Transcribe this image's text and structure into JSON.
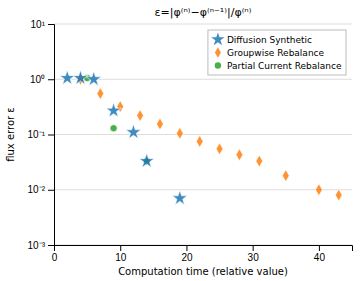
{
  "chart_data": {
    "type": "scatter",
    "title": "ε=|φ⁽ⁿ⁾−φ⁽ⁿ⁻¹⁾|/φ⁽ⁿ⁾",
    "x_label": "Computation time (relative value)",
    "y_label": "flux error ε",
    "log": "y",
    "xlim": [
      0,
      45
    ],
    "ylim": [
      0.001,
      10
    ],
    "xticks": [
      0,
      10,
      20,
      30,
      40
    ],
    "yticks": [
      {
        "value": 0.001,
        "label": "10⁻³"
      },
      {
        "value": 0.01,
        "label": "10⁻²"
      },
      {
        "value": 0.1,
        "label": "10⁻¹"
      },
      {
        "value": 1,
        "label": "10⁰"
      },
      {
        "value": 10,
        "label": "10¹"
      }
    ],
    "grid": true,
    "legend": "upper right",
    "series": [
      {
        "name": "Diffusion Synthetic",
        "marker": "star",
        "x": [
          2,
          4,
          6,
          9,
          12,
          14,
          19
        ],
        "values": [
          1.05,
          1.05,
          1.0,
          0.27,
          0.11,
          0.033,
          0.007
        ]
      },
      {
        "name": "Groupwise Rebalance",
        "marker": "diamond",
        "x": [
          4,
          7,
          10,
          13,
          16,
          19,
          22,
          25,
          28,
          31,
          35,
          40,
          43
        ],
        "values": [
          1.0,
          0.55,
          0.32,
          0.22,
          0.155,
          0.105,
          0.075,
          0.055,
          0.043,
          0.033,
          0.018,
          0.01,
          0.008
        ]
      },
      {
        "name": "Partial Current Rebalance",
        "marker": "circle",
        "x": [
          5,
          9,
          14
        ],
        "values": [
          1.05,
          0.13,
          0.033
        ]
      }
    ]
  }
}
